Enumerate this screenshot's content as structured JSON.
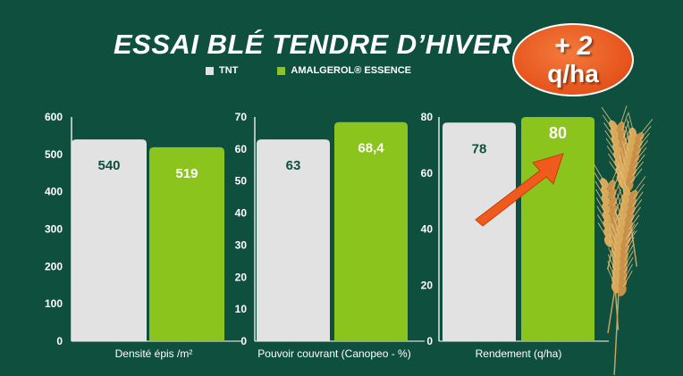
{
  "title": "ESSAI BLÉ TENDRE D’HIVER",
  "badge": {
    "line1": "+ 2",
    "line2": "q/ha"
  },
  "colors": {
    "background": "#0f4f3e",
    "tnt": "#e2e2e2",
    "amalgerol": "#8cc41e",
    "tnt_label": "#0f4f3e",
    "amalgerol_label": "#ffffff",
    "badge": "#e5531b",
    "arrow": "#f05a1c"
  },
  "icons": [
    "wheat-ears-icon",
    "up-arrow-icon"
  ],
  "chart_data": [
    {
      "type": "bar",
      "categories": [
        "Densité épis /m²"
      ],
      "series": [
        {
          "name": "TNT",
          "values": [
            540
          ]
        },
        {
          "name": "AMALGEROL® ESSENCE",
          "values": [
            519
          ]
        }
      ],
      "data_labels": [
        "540",
        "519"
      ],
      "xlabel": "Densité épis /m²",
      "ylim": [
        0,
        600
      ],
      "yticks": [
        0,
        100,
        200,
        300,
        400,
        500,
        600
      ],
      "ytick_labels": [
        "0",
        "100",
        "200",
        "300",
        "400",
        "500",
        "600"
      ],
      "legend": "top",
      "grid": false
    },
    {
      "type": "bar",
      "categories": [
        "Pouvoir couvrant (Canopeo - %)"
      ],
      "series": [
        {
          "name": "TNT",
          "values": [
            63
          ]
        },
        {
          "name": "AMALGEROL® ESSENCE",
          "values": [
            68.4
          ]
        }
      ],
      "data_labels": [
        "63",
        "68,4"
      ],
      "xlabel": "Pouvoir couvrant (Canopeo - %)",
      "ylim": [
        0,
        70
      ],
      "yticks": [
        0,
        10,
        20,
        30,
        40,
        50,
        60,
        70
      ],
      "ytick_labels": [
        "0",
        "10",
        "20",
        "30",
        "40",
        "50",
        "60",
        "70"
      ],
      "legend": "top",
      "grid": false
    },
    {
      "type": "bar",
      "categories": [
        "Rendement (q/ha)"
      ],
      "series": [
        {
          "name": "TNT",
          "values": [
            78
          ]
        },
        {
          "name": "AMALGEROL® ESSENCE",
          "values": [
            80
          ]
        }
      ],
      "data_labels": [
        "78",
        "80"
      ],
      "xlabel": "Rendement (q/ha)",
      "ylim": [
        0,
        80
      ],
      "yticks": [
        0,
        20,
        40,
        60,
        80
      ],
      "ytick_labels": [
        "0",
        "20",
        "40",
        "60",
        "80"
      ],
      "legend": "top",
      "grid": false
    }
  ]
}
